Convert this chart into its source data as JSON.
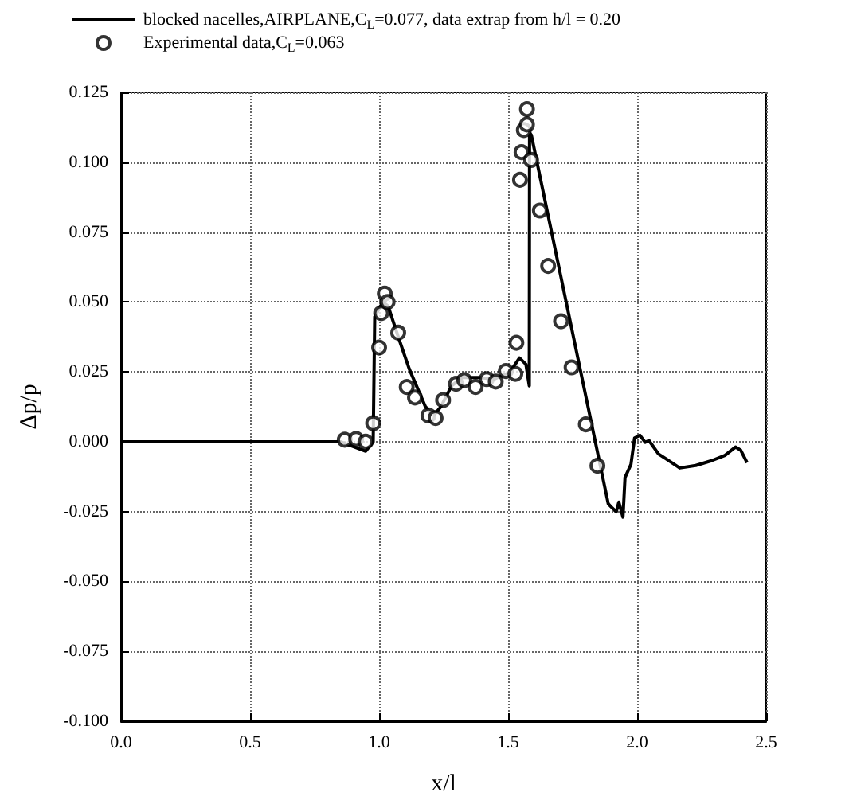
{
  "chart_data": {
    "type": "line",
    "xlabel": "x/l",
    "ylabel": "Δp/p",
    "xlim": [
      0,
      2.5
    ],
    "xticks": [
      {
        "value": 0,
        "label": "0.0"
      },
      {
        "value": 0.5,
        "label": "0.5"
      },
      {
        "value": 1,
        "label": "1.0"
      },
      {
        "value": 1.5,
        "label": "1.5"
      },
      {
        "value": 2,
        "label": "2.0"
      },
      {
        "value": 2.5,
        "label": "2.5"
      }
    ],
    "ylim": [
      -0.1,
      0.125
    ],
    "yticks": [
      {
        "value": -0.1,
        "label": "-0.100"
      },
      {
        "value": -0.075,
        "label": "-0.075"
      },
      {
        "value": -0.05,
        "label": "-0.050"
      },
      {
        "value": -0.025,
        "label": "-0.025"
      },
      {
        "value": 0,
        "label": "0.000"
      },
      {
        "value": 0.025,
        "label": "0.025"
      },
      {
        "value": 0.05,
        "label": "0.050"
      },
      {
        "value": 0.075,
        "label": "0.075"
      },
      {
        "value": 0.1,
        "label": "0.100"
      },
      {
        "value": 0.125,
        "label": "0.125"
      }
    ],
    "grid": true,
    "legend": "top left",
    "series": [
      {
        "name": "blocked nacelles,AIRPLANE,C$_{L}$=0.077, data extrap from h/l = 0.20",
        "marker": "none",
        "line_style": "solid",
        "color": "#000000",
        "x": [
          0,
          0.85,
          0.948,
          0.977,
          0.983,
          1.014,
          1.035,
          1.076,
          1.117,
          1.179,
          1.21,
          1.24,
          1.281,
          1.322,
          1.384,
          1.446,
          1.507,
          1.544,
          1.569,
          1.582,
          1.583,
          1.59,
          1.888,
          1.898,
          1.919,
          1.929,
          1.945,
          1.953,
          1.976,
          1.99,
          2.011,
          2.031,
          2.046,
          2.083,
          2.113,
          2.165,
          2.227,
          2.288,
          2.34,
          2.381,
          2.401,
          2.426
        ],
        "values": [
          0,
          0,
          -0.0034,
          0,
          0.0447,
          0.05,
          0.0485,
          0.037,
          0.026,
          0.0126,
          0.0092,
          0.0126,
          0.02,
          0.023,
          0.023,
          0.0224,
          0.0249,
          0.03,
          0.0277,
          0.02,
          0.1106,
          0.1097,
          -0.0222,
          -0.0232,
          -0.0251,
          -0.0216,
          -0.027,
          -0.0128,
          -0.0081,
          0.0013,
          0.0023,
          -0.0002,
          0.0004,
          -0.0044,
          -0.0062,
          -0.0094,
          -0.0085,
          -0.0068,
          -0.0049,
          -0.0019,
          -0.003,
          -0.0075
        ]
      },
      {
        "name": "Experimental data,C$_{L}$=0.063",
        "type": "scatter",
        "marker": "circle",
        "color": "#000000",
        "x": [
          0.867,
          0.911,
          0.948,
          0.977,
          1.0,
          1.008,
          1.022,
          1.033,
          1.074,
          1.107,
          1.139,
          1.191,
          1.219,
          1.248,
          1.298,
          1.33,
          1.374,
          1.417,
          1.452,
          1.491,
          1.528,
          1.532,
          1.546,
          1.552,
          1.561,
          1.573,
          1.573,
          1.589,
          1.623,
          1.655,
          1.705,
          1.746,
          1.801,
          1.846
        ],
        "values": [
          0.0007,
          0.001,
          0,
          0.0066,
          0.0337,
          0.046,
          0.053,
          0.05,
          0.039,
          0.0196,
          0.0158,
          0.0094,
          0.0085,
          0.0149,
          0.0207,
          0.022,
          0.0196,
          0.0224,
          0.0215,
          0.0253,
          0.0243,
          0.0354,
          0.0937,
          0.1036,
          0.1115,
          0.119,
          0.1135,
          0.1008,
          0.0827,
          0.0629,
          0.0431,
          0.0266,
          0.0062,
          -0.0086
        ]
      }
    ]
  }
}
